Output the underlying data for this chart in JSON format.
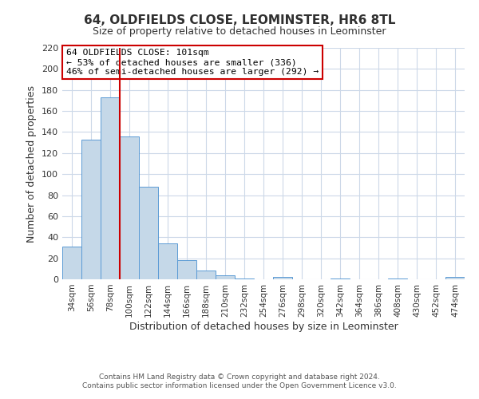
{
  "title": "64, OLDFIELDS CLOSE, LEOMINSTER, HR6 8TL",
  "subtitle": "Size of property relative to detached houses in Leominster",
  "xlabel": "Distribution of detached houses by size in Leominster",
  "ylabel": "Number of detached properties",
  "footer_line1": "Contains HM Land Registry data © Crown copyright and database right 2024.",
  "footer_line2": "Contains public sector information licensed under the Open Government Licence v3.0.",
  "bin_labels": [
    "34sqm",
    "56sqm",
    "78sqm",
    "100sqm",
    "122sqm",
    "144sqm",
    "166sqm",
    "188sqm",
    "210sqm",
    "232sqm",
    "254sqm",
    "276sqm",
    "298sqm",
    "320sqm",
    "342sqm",
    "364sqm",
    "386sqm",
    "408sqm",
    "430sqm",
    "452sqm",
    "474sqm"
  ],
  "bin_values": [
    31,
    133,
    173,
    136,
    88,
    34,
    18,
    8,
    4,
    1,
    0,
    2,
    0,
    0,
    1,
    0,
    0,
    1,
    0,
    0,
    2
  ],
  "bar_color": "#c5d8e8",
  "bar_edge_color": "#5b9bd5",
  "ylim": [
    0,
    220
  ],
  "yticks": [
    0,
    20,
    40,
    60,
    80,
    100,
    120,
    140,
    160,
    180,
    200,
    220
  ],
  "annotation_title": "64 OLDFIELDS CLOSE: 101sqm",
  "annotation_line1": "← 53% of detached houses are smaller (336)",
  "annotation_line2": "46% of semi-detached houses are larger (292) →",
  "vline_color": "#cc0000",
  "annotation_box_edge_color": "#cc0000",
  "background_color": "#ffffff",
  "grid_color": "#ccd8e8",
  "vline_x": 2.5
}
